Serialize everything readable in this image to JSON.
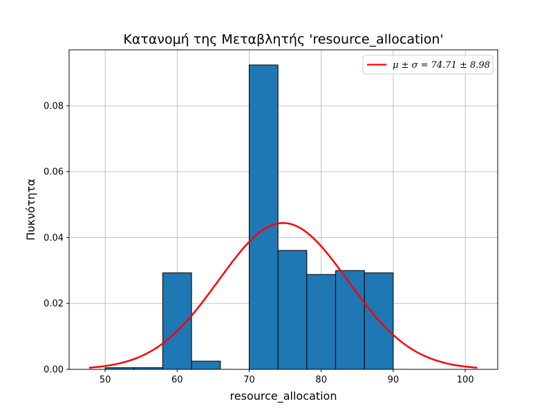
{
  "chart_data": {
    "type": "bar",
    "title": "Κατανομή της Μεταβλητής 'resource_allocation'",
    "xlabel": "resource_allocation",
    "ylabel": "Πυκνότητα",
    "xlim": [
      45,
      104.5
    ],
    "ylim": [
      0,
      0.097
    ],
    "xticks": [
      50,
      60,
      70,
      80,
      90,
      100
    ],
    "yticks": [
      0.0,
      0.02,
      0.04,
      0.06,
      0.08
    ],
    "ytick_labels": [
      "0.00",
      "0.02",
      "0.04",
      "0.06",
      "0.08"
    ],
    "grid": true,
    "histogram": {
      "bin_edges": [
        50,
        54,
        58,
        62,
        66,
        70,
        74,
        78,
        82,
        86,
        90
      ],
      "density": [
        0.0005,
        0.0005,
        0.0293,
        0.0025,
        0.0,
        0.0924,
        0.0361,
        0.0288,
        0.03,
        0.0293
      ],
      "color": "#1f77b4",
      "edgecolor": "#000000"
    },
    "normal_fit": {
      "mu": 74.71,
      "sigma": 8.98,
      "x_range": [
        47.77,
        101.65
      ],
      "color": "#ff0000"
    },
    "legend": {
      "position": "upper right",
      "entry": "μ ± σ = 74.71 ± 8.98"
    }
  }
}
